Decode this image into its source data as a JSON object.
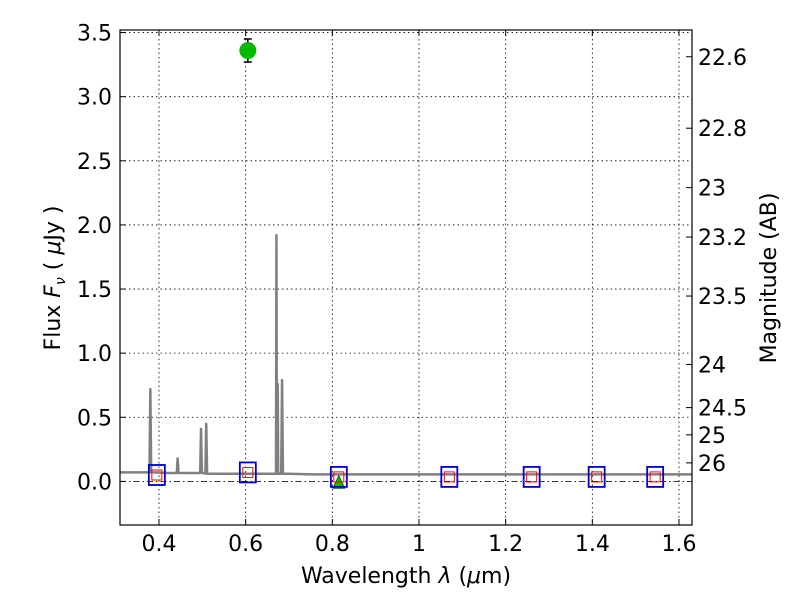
{
  "chart_data": {
    "type": "line",
    "xlabel": "Wavelength  λ (μm)",
    "ylabel": "Flux  Fν  ( μJy )",
    "y2label": "Magnitude (AB)",
    "xlim": [
      0.31,
      1.63
    ],
    "ylim": [
      -0.34,
      3.52
    ],
    "grid": true,
    "x_ticks": [
      0.4,
      0.6,
      0.8,
      1.0,
      1.2,
      1.4,
      1.6
    ],
    "x_tick_labels": [
      "0.4",
      "0.6",
      "0.8",
      "1",
      "1.2",
      "1.4",
      "1.6"
    ],
    "y_ticks": [
      0.0,
      0.5,
      1.0,
      1.5,
      2.0,
      2.5,
      3.0,
      3.5
    ],
    "y_tick_labels": [
      "0.0",
      "0.5",
      "1.0",
      "1.5",
      "2.0",
      "2.5",
      "3.0",
      "3.5"
    ],
    "mag_ticks": [
      22.6,
      22.8,
      23,
      23.2,
      23.5,
      24,
      24.5,
      25,
      26
    ],
    "mag_tick_labels": [
      "22.6",
      "22.8",
      "23",
      "23.2",
      "23.5",
      "24",
      "24.5",
      "25",
      "26"
    ],
    "zero_line": 0.0,
    "colors": {
      "model": "#808080",
      "observed": "#00bb00",
      "model_box": "#0000cc",
      "model_point": "#ff0000",
      "errorbar": "#000000"
    },
    "series": [
      {
        "name": "model spectrum",
        "kind": "line",
        "x": [
          0.31,
          0.35,
          0.378,
          0.38,
          0.382,
          0.384,
          0.39,
          0.42,
          0.441,
          0.443,
          0.445,
          0.46,
          0.495,
          0.497,
          0.499,
          0.502,
          0.505,
          0.507,
          0.509,
          0.511,
          0.513,
          0.52,
          0.56,
          0.6,
          0.65,
          0.67,
          0.671,
          0.672,
          0.673,
          0.674,
          0.675,
          0.676,
          0.678,
          0.68,
          0.682,
          0.684,
          0.686,
          0.688,
          0.7,
          0.75,
          0.8,
          0.85,
          0.9,
          1.0,
          1.1,
          1.2,
          1.3,
          1.4,
          1.5,
          1.63
        ],
        "y": [
          0.07,
          0.07,
          0.07,
          0.72,
          0.07,
          0.07,
          0.07,
          0.065,
          0.065,
          0.18,
          0.065,
          0.065,
          0.065,
          0.41,
          0.065,
          0.065,
          0.065,
          0.06,
          0.45,
          0.06,
          0.06,
          0.06,
          0.06,
          0.06,
          0.06,
          0.06,
          1.92,
          0.06,
          0.06,
          0.76,
          0.06,
          0.06,
          0.06,
          0.06,
          0.06,
          0.79,
          0.06,
          0.06,
          0.06,
          0.055,
          0.055,
          0.055,
          0.055,
          0.055,
          0.055,
          0.055,
          0.055,
          0.055,
          0.055,
          0.055
        ]
      },
      {
        "name": "observed detection",
        "kind": "point",
        "x": [
          0.605
        ],
        "y": [
          3.36
        ],
        "yerr": [
          0.09
        ]
      },
      {
        "name": "observed upper limit",
        "kind": "triangle",
        "x": [
          0.815
        ],
        "y": [
          0.0
        ]
      },
      {
        "name": "model photometry",
        "kind": "box",
        "x": [
          0.395,
          0.605,
          0.815,
          1.07,
          1.26,
          1.41,
          1.545
        ],
        "y": [
          0.05,
          0.07,
          0.035,
          0.035,
          0.035,
          0.035,
          0.035
        ]
      }
    ]
  }
}
